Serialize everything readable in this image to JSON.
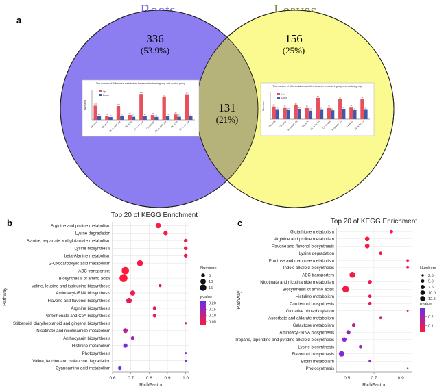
{
  "panels": {
    "a": {
      "letter": "a",
      "set_left": {
        "label": "Roots",
        "count": "336",
        "percent": "(53.9%)",
        "color": "#8c7df0",
        "label_color": "#7a68e8"
      },
      "set_right": {
        "label": "Leaves",
        "count": "156",
        "percent": "(25%)",
        "color": "#fafa90",
        "label_color": "#8a8a3a"
      },
      "intersection": {
        "count": "131",
        "percent": "(21%)",
        "color": "#b5b27a"
      },
      "inset_left": {
        "title": "The number of differential metabolites between treatment group and control group",
        "ylabel": "Numbers",
        "legend": [
          {
            "name": "Up",
            "color": "#e8505b"
          },
          {
            "name": "Down",
            "color": "#3f5aa8"
          }
        ],
        "categories": [
          "Ck vs Cd",
          "Ck vs NP",
          "Ck vs NMF_Cd",
          "Ck vs Fe",
          "Ck vs Fe_Cd",
          "Ck vs NMF",
          "Ck vs NMF_Cd",
          "Ck vs Zn",
          "Ck vs Zn_Cd"
        ],
        "series": [
          {
            "name": "Up",
            "values": [
              103,
              29,
              100,
              35,
              189,
              35,
              166,
              39,
              187
            ]
          },
          {
            "name": "Down",
            "values": [
              29,
              20,
              27,
              22,
              30,
              21,
              29,
              22,
              27
            ]
          }
        ],
        "ylim": [
          0,
          220
        ]
      },
      "inset_right": {
        "title": "The number of differential metabolites between treatment group and control group",
        "ylabel": "Numbers",
        "legend": [
          {
            "name": "Up",
            "color": "#e8505b"
          },
          {
            "name": "Down",
            "color": "#3f5aa8"
          }
        ],
        "categories": [
          "Ck vs Cd",
          "Ck vs NP",
          "Ck vs NMF_Cd",
          "Ck vs Fe",
          "Ck vs Fe_Cd",
          "Ck vs NMF",
          "Ck vs NMF_Cd",
          "Ck vs Zn",
          "Ck vs Zn_Cd"
        ],
        "series": [
          {
            "name": "Up",
            "values": [
              33,
              31,
              36,
              30,
              56,
              30,
              53,
              32,
              54
            ]
          },
          {
            "name": "Down",
            "values": [
              26,
              24,
              27,
              22,
              26,
              23,
              27,
              24,
              26
            ]
          }
        ],
        "ylim": [
          0,
          70
        ]
      }
    },
    "b": {
      "letter": "b"
    },
    "c": {
      "letter": "c"
    }
  },
  "chart_data": [
    {
      "type": "scatter",
      "panel": "b",
      "title": "Top 20 of KEGG Enrichment",
      "xlabel": "RichFactor",
      "ylabel": "Pathway",
      "xlim": [
        0.6,
        1.02
      ],
      "xticks": [
        0.6,
        0.7,
        0.8,
        0.9,
        1.0
      ],
      "xtick_labels": [
        "0.6",
        "0.7",
        "0.8",
        "0.9",
        "1.0"
      ],
      "legend_size": {
        "title": "Numbers",
        "values": [
          5,
          10,
          15
        ],
        "labels": [
          "5",
          "10",
          "15"
        ]
      },
      "legend_color": {
        "title": "pvalue",
        "ticks": [
          0.2,
          0.15,
          0.1,
          0.05
        ],
        "tick_labels": [
          "0.20",
          "0.15",
          "0.10",
          "0.05"
        ],
        "range": [
          0.02,
          0.22
        ]
      },
      "colors": {
        "low": "#ff1a3c",
        "high": "#6a2cf0"
      },
      "grid": true,
      "legend_position": "right",
      "points": [
        {
          "label": "Arginine and proline metabolism",
          "x": 0.85,
          "size": 6,
          "p": 0.03
        },
        {
          "label": "Lysine degradation",
          "x": 0.89,
          "size": 4,
          "p": 0.03
        },
        {
          "label": "Alanine, aspartate and glutamate metabolism",
          "x": 1.0,
          "size": 3,
          "p": 0.04
        },
        {
          "label": "Lysine biosynthesis",
          "x": 1.0,
          "size": 3,
          "p": 0.04
        },
        {
          "label": "beta-Alanine metabolism",
          "x": 1.0,
          "size": 3,
          "p": 0.05
        },
        {
          "label": "2-Oxocarboxylic acid metabolism",
          "x": 0.75,
          "size": 8,
          "p": 0.03
        },
        {
          "label": "ABC transporters",
          "x": 0.67,
          "size": 12,
          "p": 0.02
        },
        {
          "label": "Biosynthesis of amino acids",
          "x": 0.66,
          "size": 14,
          "p": 0.02
        },
        {
          "label": "Valine, leucine and isoleucine biosynthesis",
          "x": 0.86,
          "size": 2,
          "p": 0.06
        },
        {
          "label": "Aminoacyl-tRNA biosynthesis",
          "x": 0.71,
          "size": 6,
          "p": 0.05
        },
        {
          "label": "Flavone and flavonol biosynthesis",
          "x": 0.69,
          "size": 7,
          "p": 0.05
        },
        {
          "label": "Arginine biosynthesis",
          "x": 0.83,
          "size": 3,
          "p": 0.06
        },
        {
          "label": "Pantothenate and CoA biosynthesis",
          "x": 0.83,
          "size": 3,
          "p": 0.07
        },
        {
          "label": "Stilbenoid, diarylheptanoid and gingerol biosynthesis",
          "x": 1.0,
          "size": 1,
          "p": 0.09
        },
        {
          "label": "Nicotinate and nicotinamide metabolism",
          "x": 0.67,
          "size": 5,
          "p": 0.12
        },
        {
          "label": "Anthocyanin biosynthesis",
          "x": 0.71,
          "size": 3,
          "p": 0.15
        },
        {
          "label": "Histidine metabolism",
          "x": 0.67,
          "size": 4,
          "p": 0.2
        },
        {
          "label": "Photosynthesis",
          "x": 1.0,
          "size": 1,
          "p": 0.18
        },
        {
          "label": "Valine, leucine and isoleucine degradation",
          "x": 1.0,
          "size": 1,
          "p": 0.2
        },
        {
          "label": "Cyanoamino acid metabolism",
          "x": 0.64,
          "size": 3,
          "p": 0.21
        }
      ]
    },
    {
      "type": "scatter",
      "panel": "c",
      "title": "Top 20 of KEGG Enrichment",
      "xlabel": "RichFactor",
      "ylabel": "Pathway",
      "xlim": [
        0.42,
        0.98
      ],
      "xticks": [
        0.5,
        0.7,
        0.9
      ],
      "xtick_labels": [
        "0.5",
        "0.7",
        "0.9"
      ],
      "legend_size": {
        "title": "Numbers",
        "values": [
          2.5,
          5,
          7.5,
          10,
          12.5
        ],
        "labels": [
          "2.5",
          "5.0",
          "7.5",
          "10.0",
          "12.5"
        ]
      },
      "legend_color": {
        "title": "pvalue",
        "ticks": [
          0.2,
          0.1
        ],
        "tick_labels": [
          "0.2",
          "0.1"
        ],
        "range": [
          0.03,
          0.3
        ]
      },
      "colors": {
        "low": "#ff1a3c",
        "high": "#6a2cf0"
      },
      "grid": true,
      "legend_position": "right",
      "points": [
        {
          "label": "Glutathione metabolism",
          "x": 0.83,
          "size": 3,
          "p": 0.04
        },
        {
          "label": "Arginine and proline metabolism",
          "x": 0.65,
          "size": 6,
          "p": 0.04
        },
        {
          "label": "Flavone and flavonol biosynthesis",
          "x": 0.65,
          "size": 6,
          "p": 0.04
        },
        {
          "label": "Lysine degradation",
          "x": 0.75,
          "size": 3,
          "p": 0.05
        },
        {
          "label": "Fructose and mannose metabolism",
          "x": 0.95,
          "size": 2,
          "p": 0.06
        },
        {
          "label": "Indole alkaloid biosynthesis",
          "x": 0.95,
          "size": 2,
          "p": 0.06
        },
        {
          "label": "ABC transporters",
          "x": 0.54,
          "size": 10,
          "p": 0.05
        },
        {
          "label": "Nicotinate and nicotinamide metabolism",
          "x": 0.67,
          "size": 4,
          "p": 0.06
        },
        {
          "label": "Biosynthesis of amino acids",
          "x": 0.49,
          "size": 13,
          "p": 0.05
        },
        {
          "label": "Histidine metabolism",
          "x": 0.67,
          "size": 3,
          "p": 0.08
        },
        {
          "label": "Carotenoid biosynthesis",
          "x": 0.67,
          "size": 3,
          "p": 0.1
        },
        {
          "label": "Oxidative phosphorylation",
          "x": 0.95,
          "size": 1,
          "p": 0.1
        },
        {
          "label": "Ascorbate and aldarate metabolism",
          "x": 0.75,
          "size": 2,
          "p": 0.12
        },
        {
          "label": "Galactose metabolism",
          "x": 0.55,
          "size": 4,
          "p": 0.15
        },
        {
          "label": "Aminoacyl-tRNA biosynthesis",
          "x": 0.51,
          "size": 5,
          "p": 0.22
        },
        {
          "label": "Tropane, piperidine and pyridine alkaloid biosynthesis",
          "x": 0.48,
          "size": 6,
          "p": 0.24
        },
        {
          "label": "Lysine biosynthesis",
          "x": 0.6,
          "size": 3,
          "p": 0.22
        },
        {
          "label": "Flavonoid biosynthesis",
          "x": 0.46,
          "size": 9,
          "p": 0.26
        },
        {
          "label": "Biotin metabolism",
          "x": 0.67,
          "size": 2,
          "p": 0.25
        },
        {
          "label": "Photosynthesis",
          "x": 0.95,
          "size": 1,
          "p": 0.27
        }
      ]
    }
  ]
}
